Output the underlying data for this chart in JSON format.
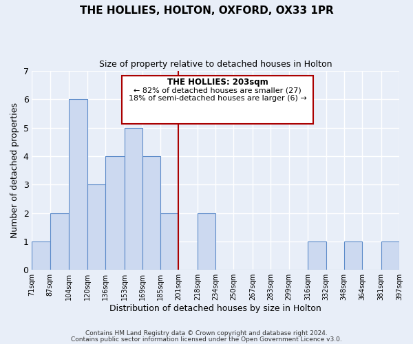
{
  "title": "THE HOLLIES, HOLTON, OXFORD, OX33 1PR",
  "subtitle": "Size of property relative to detached houses in Holton",
  "xlabel": "Distribution of detached houses by size in Holton",
  "ylabel": "Number of detached properties",
  "bar_color": "#ccd9f0",
  "bar_edge_color": "#5b8ac9",
  "background_color": "#e8eef8",
  "grid_color": "#ffffff",
  "annotation_box_edge": "#aa0000",
  "annotation_line_color": "#aa0000",
  "annotation_title": "THE HOLLIES: 203sqm",
  "annotation_line1": "← 82% of detached houses are smaller (27)",
  "annotation_line2": "18% of semi-detached houses are larger (6) →",
  "categories": [
    "71sqm",
    "87sqm",
    "104sqm",
    "120sqm",
    "136sqm",
    "153sqm",
    "169sqm",
    "185sqm",
    "201sqm",
    "218sqm",
    "234sqm",
    "250sqm",
    "267sqm",
    "283sqm",
    "299sqm",
    "316sqm",
    "332sqm",
    "348sqm",
    "364sqm",
    "381sqm",
    "397sqm"
  ],
  "bin_edges": [
    71,
    87,
    104,
    120,
    136,
    153,
    169,
    185,
    201,
    218,
    234,
    250,
    267,
    283,
    299,
    316,
    332,
    348,
    364,
    381,
    397
  ],
  "values": [
    1,
    2,
    6,
    3,
    4,
    5,
    4,
    2,
    0,
    2,
    0,
    0,
    0,
    0,
    0,
    1,
    0,
    1,
    0,
    1,
    0
  ],
  "ylim": [
    0,
    7
  ],
  "yticks": [
    0,
    1,
    2,
    3,
    4,
    5,
    6,
    7
  ],
  "footer_line1": "Contains HM Land Registry data © Crown copyright and database right 2024.",
  "footer_line2": "Contains public sector information licensed under the Open Government Licence v3.0."
}
